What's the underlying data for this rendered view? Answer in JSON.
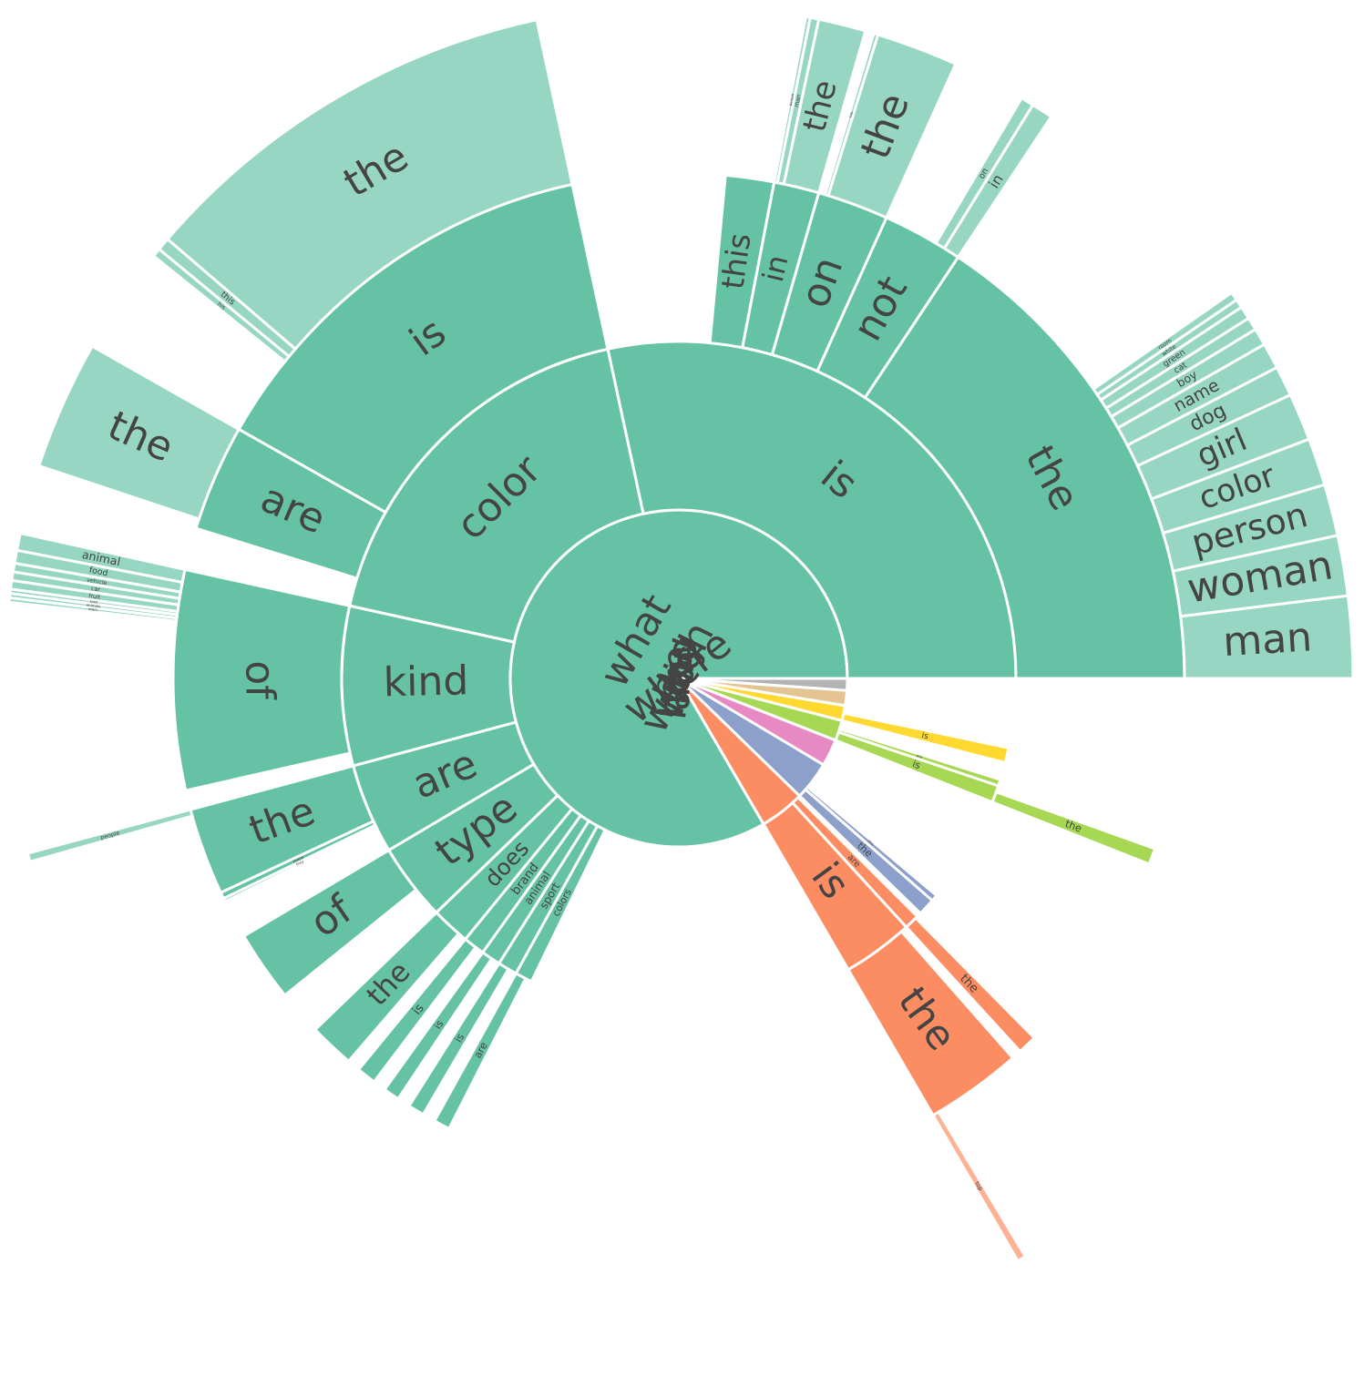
{
  "chart_data": {
    "type": "sunburst",
    "nodes": [
      {
        "name": "what",
        "value": 808,
        "color": "#66c2a5",
        "children": [
          {
            "name": "is",
            "value": 275,
            "children": [
              {
                "name": "the",
                "value": 152,
                "children": [
                  {
                    "name": "man",
                    "value": 19
                  },
                  {
                    "name": "woman",
                    "value": 14
                  },
                  {
                    "name": "person",
                    "value": 12
                  },
                  {
                    "name": "color",
                    "value": 11
                  },
                  {
                    "name": "girl",
                    "value": 11
                  },
                  {
                    "name": "dog",
                    "value": 7
                  },
                  {
                    "name": "name",
                    "value": 6
                  },
                  {
                    "name": "boy",
                    "value": 4
                  },
                  {
                    "name": "cat",
                    "value": 3
                  },
                  {
                    "name": "green",
                    "value": 3
                  },
                  {
                    "name": "white",
                    "value": 2
                  },
                  {
                    "name": "room",
                    "value": 2
                  }
                ]
              },
              {
                "name": "not",
                "value": 25,
                "children": [
                  {
                    "name": "in",
                    "value": 5
                  },
                  {
                    "name": "on",
                    "value": 3
                  }
                ]
              },
              {
                "name": "on",
                "value": 22,
                "children": [
                  {
                    "name": "the",
                    "value": 19
                  },
                  {
                    "name": "top",
                    "value": 1
                  }
                ]
              },
              {
                "name": "in",
                "value": 14,
                "children": [
                  {
                    "name": "the",
                    "value": 11
                  },
                  {
                    "name": "man",
                    "value": 2
                  },
                  {
                    "name": "person",
                    "value": 1
                  }
                ]
              },
              {
                "name": "this",
                "value": 15
              }
            ]
          },
          {
            "name": "color",
            "value": 176,
            "children": [
              {
                "name": "is",
                "value": 130,
                "children": [
                  {
                    "name": "the",
                    "value": 100
                  },
                  {
                    "name": "this",
                    "value": 3
                  },
                  {
                    "name": "his",
                    "value": 2
                  }
                ]
              },
              {
                "name": "are",
                "value": 33,
                "children": [
                  {
                    "name": "the",
                    "value": 30
                  }
                ]
              }
            ]
          },
          {
            "name": "kind",
            "value": 74,
            "children": [
              {
                "name": "of",
                "value": 68,
                "children": [
                  {
                    "name": "animal",
                    "value": 4
                  },
                  {
                    "name": "food",
                    "value": 3
                  },
                  {
                    "name": "vehicle",
                    "value": 2
                  },
                  {
                    "name": "car",
                    "value": 2
                  },
                  {
                    "name": "fruit",
                    "value": 2
                  },
                  {
                    "name": "bird",
                    "value": 1
                  },
                  {
                    "name": "animals",
                    "value": 1
                  },
                  {
                    "name": "room",
                    "value": 1
                  }
                ]
              }
            ]
          },
          {
            "name": "are",
            "value": 42,
            "children": [
              {
                "name": "the",
                "value": 27,
                "children": [
                  {
                    "name": "people",
                    "value": 2
                  }
                ]
              },
              {
                "name": "these",
                "value": 2
              },
              {
                "name": "they",
                "value": 1
              }
            ]
          },
          {
            "name": "type",
            "value": 36,
            "children": [
              {
                "name": "of",
                "value": 22
              }
            ]
          },
          {
            "name": "does",
            "value": 18,
            "children": [
              {
                "name": "the",
                "value": 14
              }
            ]
          },
          {
            "name": "brand",
            "value": 10,
            "children": [
              {
                "name": "is",
                "value": 6
              }
            ]
          },
          {
            "name": "animal",
            "value": 9,
            "children": [
              {
                "name": "is",
                "value": 5
              }
            ]
          },
          {
            "name": "sport",
            "value": 9,
            "children": [
              {
                "name": "is",
                "value": 5
              }
            ]
          },
          {
            "name": "colors",
            "value": 8,
            "children": [
              {
                "name": "are",
                "value": 5
              }
            ]
          }
        ]
      },
      {
        "name": "where",
        "value": 42,
        "color": "#fc8d62",
        "children": [
          {
            "name": "is",
            "value": 33,
            "children": [
              {
                "name": "the",
                "value": 30,
                "children": [
                  {
                    "name": "top",
                    "value": 2
                  }
                ]
              }
            ]
          },
          {
            "name": "are",
            "value": 7,
            "children": [
              {
                "name": "the",
                "value": 6
              }
            ]
          }
        ]
      },
      {
        "name": "is",
        "value": 36,
        "color": "#8da0cb",
        "children": [
          {
            "name": "the",
            "value": 8
          },
          {
            "name": "this",
            "value": 3
          }
        ]
      },
      {
        "name": "which",
        "value": 25,
        "color": "#e78ac3"
      },
      {
        "name": "why",
        "value": 19,
        "color": "#a6d854",
        "children": [
          {
            "name": "is",
            "value": 8,
            "children": [
              {
                "name": "the",
                "value": 5
              }
            ]
          },
          {
            "name": "are",
            "value": 3
          }
        ]
      },
      {
        "name": "who",
        "value": 14,
        "color": "#ffd92f",
        "children": [
          {
            "name": "is",
            "value": 7
          }
        ]
      },
      {
        "name": "how",
        "value": 14,
        "color": "#e5c494"
      },
      {
        "name": "are",
        "value": 11,
        "color": "#b3b3b3"
      }
    ]
  }
}
